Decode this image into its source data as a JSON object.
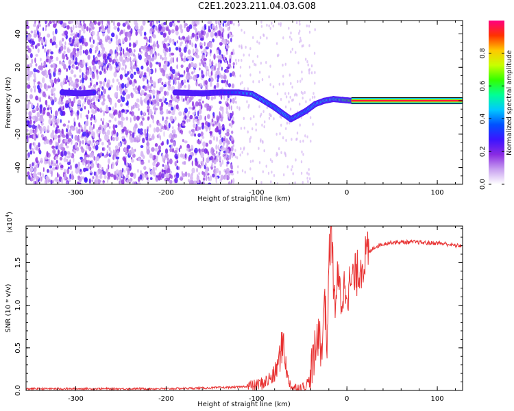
{
  "title": "C2E1.2023.211.04.03.G08",
  "colors": {
    "snr_line": "#e83232",
    "frame": "#000000"
  },
  "chart_data": [
    {
      "type": "heatmap",
      "xlabel": "Height of straight line (km)",
      "ylabel": "Frequency (Hz)",
      "xlim": [
        -355,
        128
      ],
      "ylim": [
        -50,
        48
      ],
      "x_ticks": [
        -300,
        -200,
        -100,
        0,
        100
      ],
      "x_tick_labels": [
        "-300",
        "-200",
        "-100",
        "0",
        "100"
      ],
      "y_ticks": [
        -40,
        -20,
        0,
        20,
        40
      ],
      "y_tick_labels": [
        "-40",
        "-20",
        "0",
        "20",
        "40"
      ],
      "colorbar": {
        "label": "Normalized spectral amplitude",
        "range": [
          0,
          1
        ],
        "ticks": [
          0.0,
          0.2,
          0.4,
          0.6,
          0.8
        ],
        "tick_labels": [
          "0.0",
          "0.2",
          "0.4",
          "0.6",
          "0.8"
        ],
        "colormap": [
          "#ffffff",
          "#c8a0f0",
          "#8a2be2",
          "#3c14ff",
          "#0050ff",
          "#00c8ff",
          "#00ff96",
          "#32ff00",
          "#c8ff00",
          "#ffc800",
          "#ff3200",
          "#ff0080"
        ]
      },
      "noise_region": {
        "x_range": [
          -355,
          -125
        ]
      },
      "ridge": [
        {
          "x": -315,
          "f": 5,
          "a": 0.35
        },
        {
          "x": -295,
          "f": 4.5,
          "a": 0.3
        },
        {
          "x": -280,
          "f": 5,
          "a": 0.3
        },
        {
          "x": -190,
          "f": 5,
          "a": 0.3
        },
        {
          "x": -160,
          "f": 4.5,
          "a": 0.35
        },
        {
          "x": -140,
          "f": 5,
          "a": 0.35
        },
        {
          "x": -120,
          "f": 5,
          "a": 0.5
        },
        {
          "x": -105,
          "f": 4,
          "a": 0.6
        },
        {
          "x": -95,
          "f": 1,
          "a": 0.55
        },
        {
          "x": -80,
          "f": -4,
          "a": 0.5
        },
        {
          "x": -70,
          "f": -8,
          "a": 0.55
        },
        {
          "x": -62,
          "f": -11,
          "a": 0.5
        },
        {
          "x": -55,
          "f": -9,
          "a": 0.55
        },
        {
          "x": -45,
          "f": -6,
          "a": 0.5
        },
        {
          "x": -35,
          "f": -2,
          "a": 0.55
        },
        {
          "x": -25,
          "f": 0,
          "a": 0.6
        },
        {
          "x": -15,
          "f": 1,
          "a": 0.6
        },
        {
          "x": -5,
          "f": 0.5,
          "a": 0.7
        },
        {
          "x": 5,
          "f": 0,
          "a": 0.8
        },
        {
          "x": 128,
          "f": 0,
          "a": 0.95
        }
      ]
    },
    {
      "type": "line",
      "xlabel": "Height of straight line (km)",
      "ylabel": "SNR (10 * v/v)",
      "y_multiplier_label": "(x10",
      "y_multiplier_exp": "4",
      "xlim": [
        -355,
        128
      ],
      "ylim": [
        0,
        1.93
      ],
      "x_ticks": [
        -300,
        -200,
        -100,
        0,
        100
      ],
      "x_tick_labels": [
        "-300",
        "-200",
        "-100",
        "0",
        "100"
      ],
      "y_ticks": [
        0.0,
        0.5,
        1.0,
        1.5
      ],
      "y_tick_labels": [
        "0.0",
        "0.5",
        "1.0",
        "1.5"
      ],
      "series": [
        {
          "x": [
            -355,
            -300,
            -250,
            -200,
            -150,
            -120,
            -100,
            -90,
            -80,
            -74,
            -70,
            -66,
            -60,
            -55,
            -48,
            -42,
            -38,
            -34,
            -30,
            -28,
            -25,
            -22,
            -20,
            -17,
            -14,
            -10,
            -6,
            -2,
            2,
            6,
            10,
            15,
            20,
            25,
            30,
            40,
            50,
            60,
            70,
            80,
            90,
            100,
            110,
            120,
            128
          ],
          "y": [
            0.02,
            0.02,
            0.02,
            0.02,
            0.03,
            0.04,
            0.06,
            0.1,
            0.18,
            0.4,
            0.6,
            0.15,
            0.03,
            0.03,
            0.04,
            0.1,
            0.3,
            0.5,
            0.8,
            0.3,
            1.2,
            0.5,
            1.5,
            1.9,
            1.0,
            1.3,
            1.05,
            1.25,
            1.2,
            1.3,
            1.35,
            1.45,
            1.55,
            1.62,
            1.68,
            1.72,
            1.74,
            1.74,
            1.74,
            1.74,
            1.73,
            1.73,
            1.72,
            1.7,
            1.7
          ]
        }
      ]
    }
  ]
}
